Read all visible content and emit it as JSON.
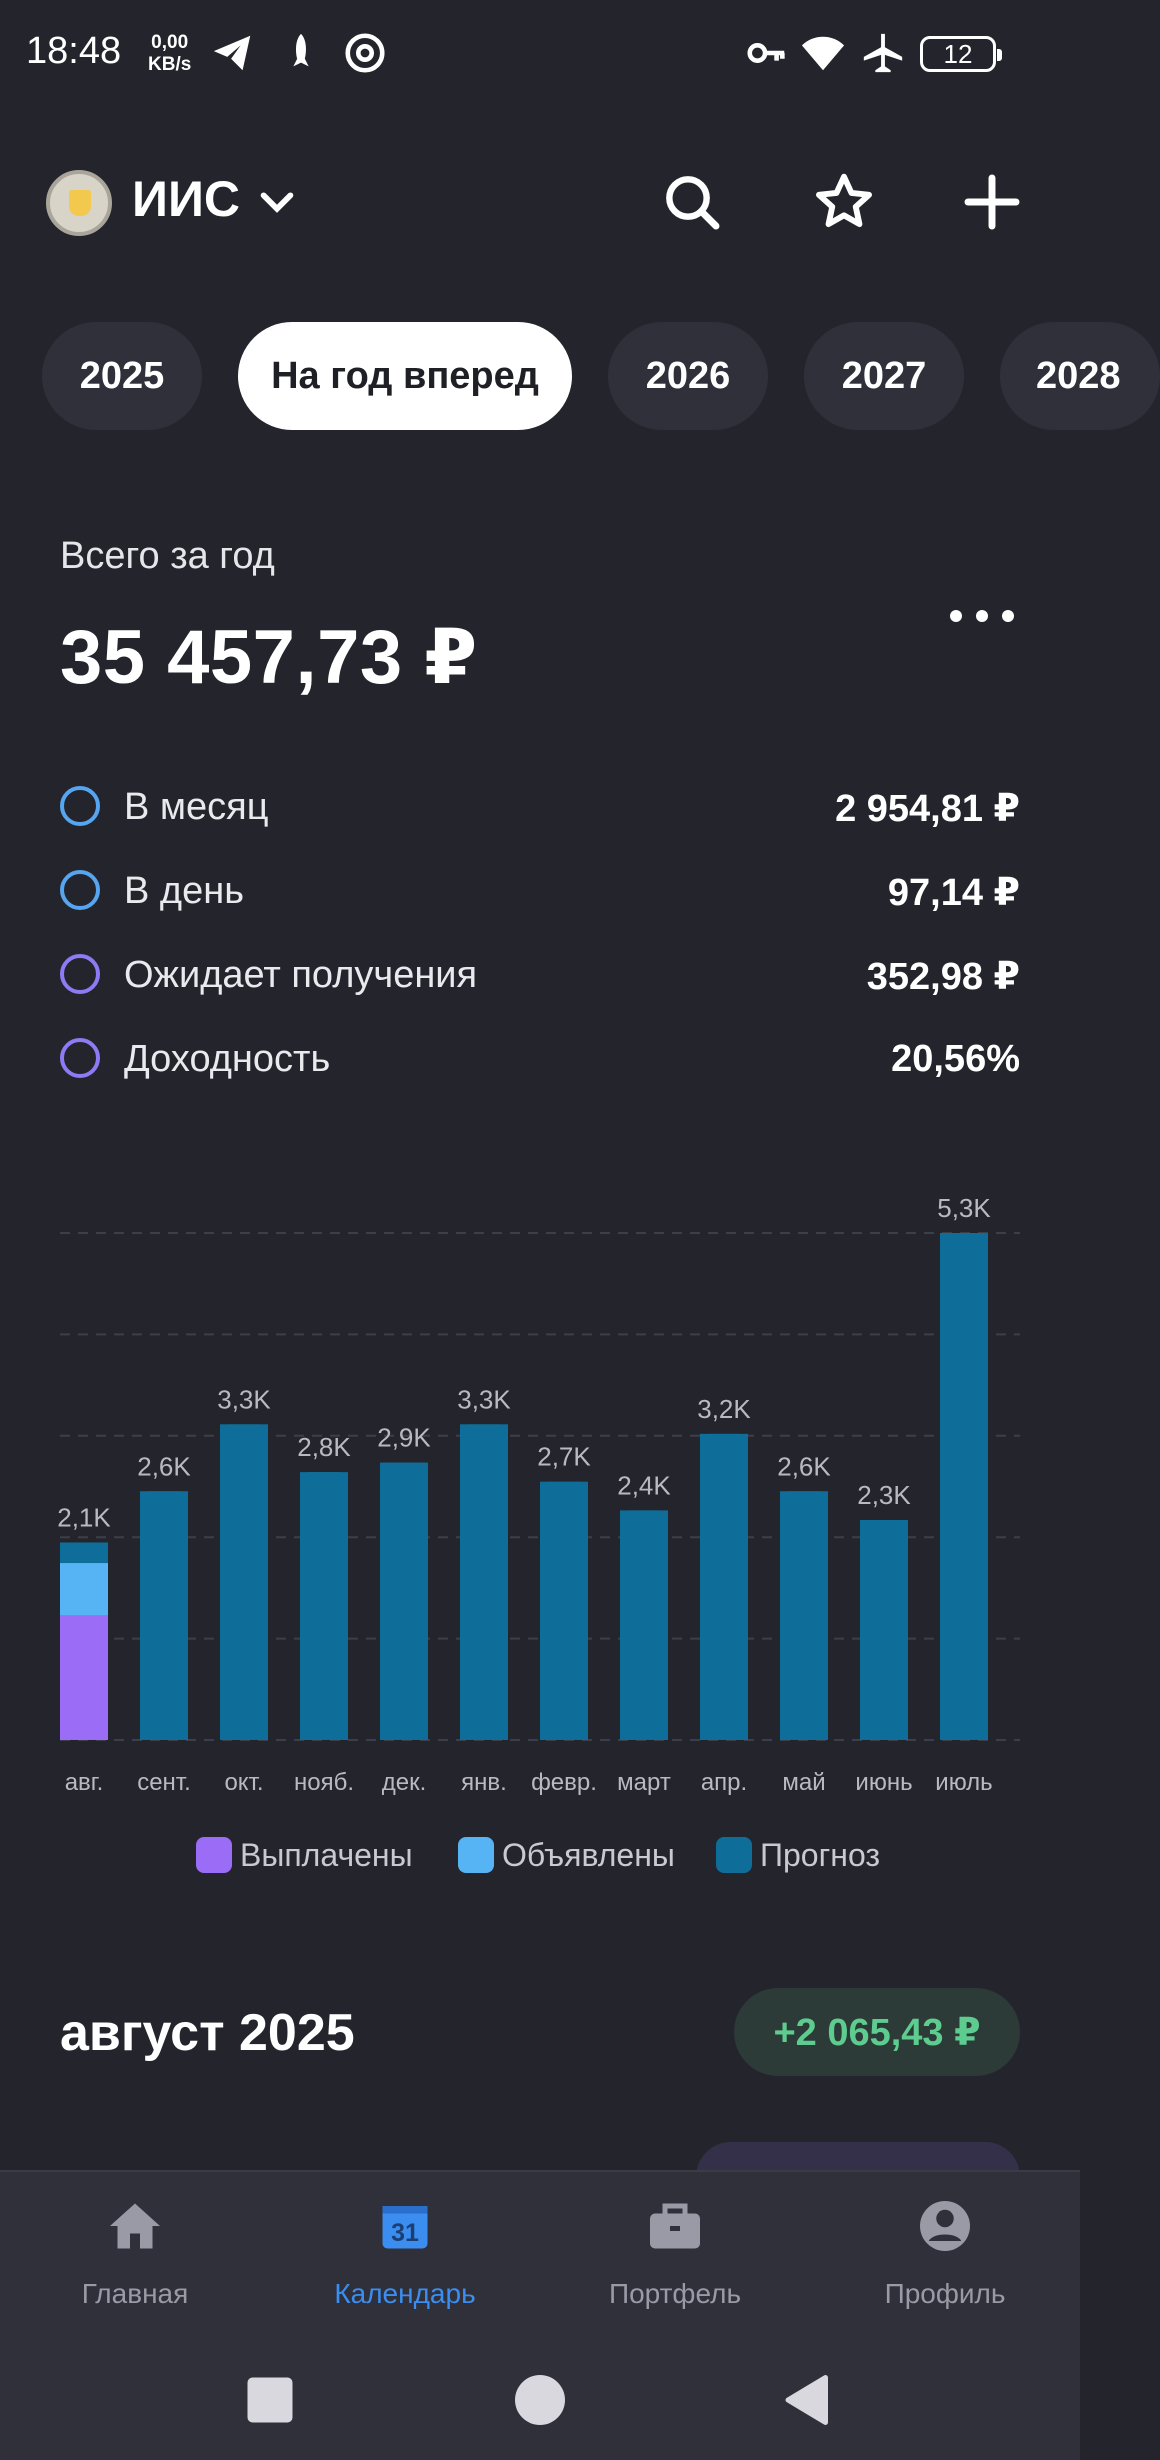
{
  "status_bar": {
    "time": "18:48",
    "net_speed_value": "0,00",
    "net_speed_unit": "KB/s",
    "battery": "12"
  },
  "header": {
    "account_name": "ИИС"
  },
  "year_tabs": [
    {
      "label": "2025",
      "active": false
    },
    {
      "label": "На год вперед",
      "active": true
    },
    {
      "label": "2026",
      "active": false
    },
    {
      "label": "2027",
      "active": false
    },
    {
      "label": "2028",
      "active": false
    }
  ],
  "summary": {
    "total_label": "Всего за год",
    "total_value": "35 457,73 ₽",
    "stats": [
      {
        "label": "В месяц",
        "value": "2 954,81 ₽"
      },
      {
        "label": "В день",
        "value": "97,14 ₽"
      },
      {
        "label": "Ожидает получения",
        "value": "352,98 ₽"
      },
      {
        "label": "Доходность",
        "value": "20,56%"
      }
    ]
  },
  "chart_data": {
    "type": "bar",
    "stacked": true,
    "categories": [
      "авг.",
      "сент.",
      "окт.",
      "нояб.",
      "дек.",
      "янв.",
      "февр.",
      "март",
      "апр.",
      "май",
      "июнь",
      "июль"
    ],
    "data_labels": [
      "2,1K",
      "2,6K",
      "3,3K",
      "2,8K",
      "2,9K",
      "3,3K",
      "2,7K",
      "2,4K",
      "3,2K",
      "2,6K",
      "2,3K",
      "5,3K"
    ],
    "series": [
      {
        "name": "Выплачены",
        "color": "#9b6cf5",
        "values": [
          1300,
          0,
          0,
          0,
          0,
          0,
          0,
          0,
          0,
          0,
          0,
          0
        ]
      },
      {
        "name": "Объявлены",
        "color": "#56b4f5",
        "values": [
          550,
          0,
          0,
          0,
          0,
          0,
          0,
          0,
          0,
          0,
          0,
          0
        ]
      },
      {
        "name": "Прогноз",
        "color": "#0f6e99",
        "values": [
          215,
          2600,
          3300,
          2800,
          2900,
          3300,
          2700,
          2400,
          3200,
          2600,
          2300,
          5300
        ]
      }
    ],
    "ylim": [
      0,
      5300
    ],
    "grid": true,
    "legend": "bottom"
  },
  "month": {
    "title": "август 2025",
    "total": "+2 065,43 ₽"
  },
  "bottom_nav": [
    {
      "label": "Главная",
      "icon": "home-icon",
      "active": false
    },
    {
      "label": "Календарь",
      "icon": "calendar-icon",
      "active": true,
      "icon_text": "31"
    },
    {
      "label": "Портфель",
      "icon": "briefcase-icon",
      "active": false
    },
    {
      "label": "Профиль",
      "icon": "profile-icon",
      "active": false
    }
  ],
  "colors": {
    "background": "#24252c",
    "accent": "#3b8df0",
    "positive": "#5dcc8e"
  }
}
